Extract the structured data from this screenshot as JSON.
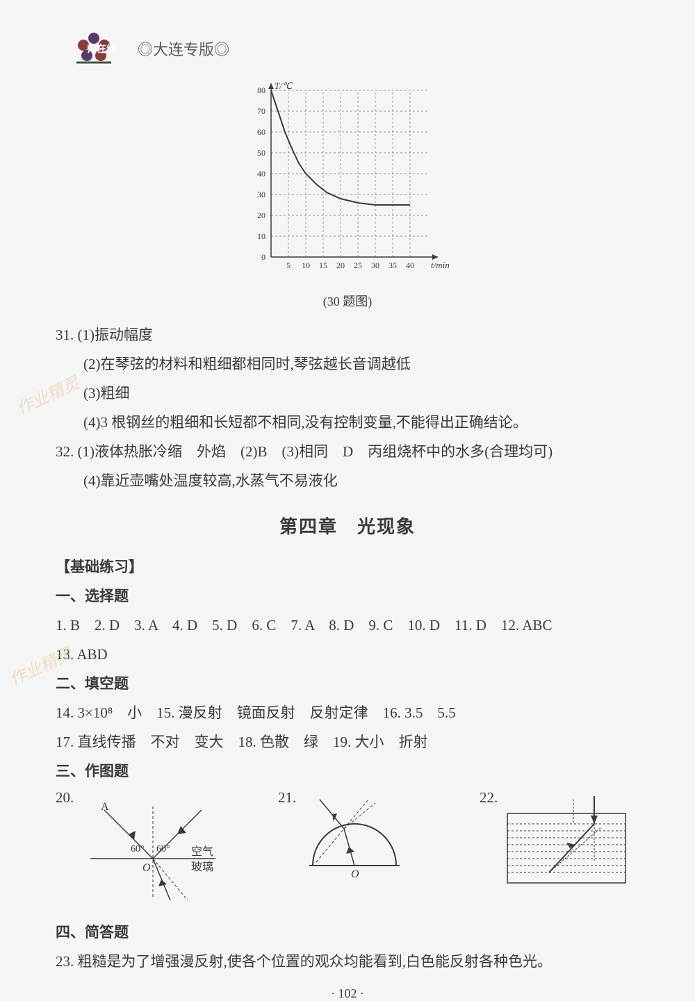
{
  "header": {
    "edition": "◎大连专版◎"
  },
  "chart": {
    "type": "line",
    "caption": "(30 题图)",
    "y_axis_label": "T/℃",
    "x_axis_label": "t/min",
    "y_ticks": [
      0,
      10,
      20,
      30,
      40,
      50,
      60,
      70,
      80
    ],
    "x_ticks": [
      5,
      10,
      15,
      20,
      25,
      30,
      35,
      40
    ],
    "ylim": [
      0,
      80
    ],
    "xlim": [
      0,
      45
    ],
    "data_points": [
      {
        "x": 0,
        "y": 80
      },
      {
        "x": 2,
        "y": 70
      },
      {
        "x": 4,
        "y": 60
      },
      {
        "x": 6,
        "y": 52
      },
      {
        "x": 8,
        "y": 45
      },
      {
        "x": 10,
        "y": 40
      },
      {
        "x": 13,
        "y": 35
      },
      {
        "x": 16,
        "y": 31
      },
      {
        "x": 20,
        "y": 28
      },
      {
        "x": 25,
        "y": 26
      },
      {
        "x": 30,
        "y": 25
      },
      {
        "x": 35,
        "y": 25
      },
      {
        "x": 40,
        "y": 25
      }
    ],
    "line_color": "#3a3a3a",
    "grid_color": "#7a7a7a",
    "background_color": "#f5f5f3",
    "label_fontsize": 12
  },
  "q31": {
    "num": "31.",
    "a1": "(1)振动幅度",
    "a2": "(2)在琴弦的材料和粗细都相同时,琴弦越长音调越低",
    "a3": "(3)粗细",
    "a4": "(4)3 根钢丝的粗细和长短都不相同,没有控制变量,不能得出正确结论。"
  },
  "q32": {
    "line1": "32. (1)液体热胀冷缩　外焰　(2)B　(3)相同　D　丙组烧杯中的水多(合理均可)",
    "line2": "(4)靠近壶嘴处温度较高,水蒸气不易液化"
  },
  "chapter": {
    "title": "第四章　光现象"
  },
  "sections": {
    "basic": "【基础练习】",
    "mc": "一、选择题",
    "fill": "二、填空题",
    "drawing": "三、作图题",
    "short": "四、简答题"
  },
  "mc_answers": {
    "line1": "1. B　2. D　3. A　4. D　5. D　6. C　7. A　8. D　9. C　10. D　11. D　12. ABC",
    "line2": "13. ABD"
  },
  "fill_answers": {
    "line1": "14. 3×10⁸　小　15. 漫反射　镜面反射　反射定律　16. 3.5　5.5",
    "line2": "17. 直线传播　不对　变大　18. 色散　绿　19. 大小　折射"
  },
  "figures": {
    "f20": {
      "num": "20.",
      "labels": {
        "A": "A",
        "O": "O",
        "angle1": "60°",
        "angle2": "60°",
        "air": "空气",
        "glass": "玻璃"
      }
    },
    "f21": {
      "num": "21.",
      "labels": {
        "O": "O"
      }
    },
    "f22": {
      "num": "22."
    }
  },
  "q23": {
    "text": "23. 粗糙是为了增强漫反射,使各个位置的观众均能看到,白色能反射各种色光。"
  },
  "page_number": "· 102 ·"
}
